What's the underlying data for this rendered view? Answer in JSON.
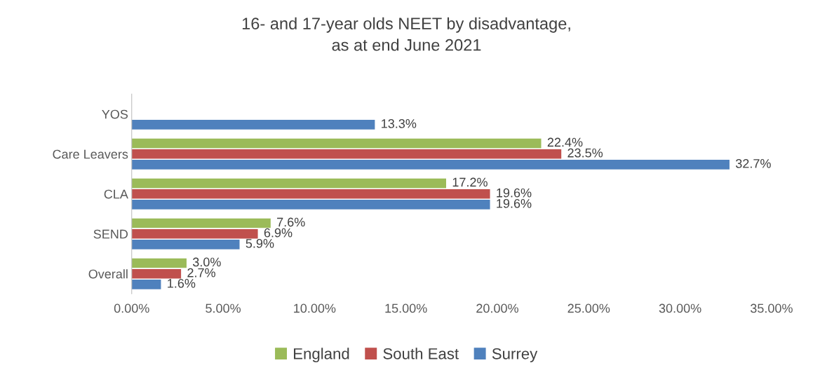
{
  "chart_data": {
    "type": "bar",
    "orientation": "horizontal",
    "title": "16- and 17-year olds NEET by disadvantage,\nas at end June 2021",
    "categories": [
      "YOS",
      "Care Leavers",
      "CLA",
      "SEND",
      "Overall"
    ],
    "series": [
      {
        "name": "England",
        "color": "#9bbb59",
        "values": [
          null,
          22.4,
          17.2,
          7.6,
          3.0
        ],
        "value_labels": [
          null,
          "22.4%",
          "17.2%",
          "7.6%",
          "3.0%"
        ]
      },
      {
        "name": "South East",
        "color": "#c0504d",
        "values": [
          null,
          23.5,
          19.6,
          6.9,
          2.7
        ],
        "value_labels": [
          null,
          "23.5%",
          "19.6%",
          "6.9%",
          "2.7%"
        ]
      },
      {
        "name": "Surrey",
        "color": "#4f81bd",
        "values": [
          13.3,
          32.7,
          19.6,
          5.9,
          1.6
        ],
        "value_labels": [
          "13.3%",
          "32.7%",
          "19.6%",
          "5.9%",
          "1.6%"
        ]
      }
    ],
    "xlim": [
      0,
      35
    ],
    "xticks": [
      {
        "value": 0,
        "label": "0.00%"
      },
      {
        "value": 5,
        "label": "5.00%"
      },
      {
        "value": 10,
        "label": "10.00%"
      },
      {
        "value": 15,
        "label": "15.00%"
      },
      {
        "value": 20,
        "label": "20.00%"
      },
      {
        "value": 25,
        "label": "25.00%"
      },
      {
        "value": 30,
        "label": "30.00%"
      },
      {
        "value": 35,
        "label": "35.00%"
      }
    ],
    "grid": false,
    "legend": "bottom"
  }
}
